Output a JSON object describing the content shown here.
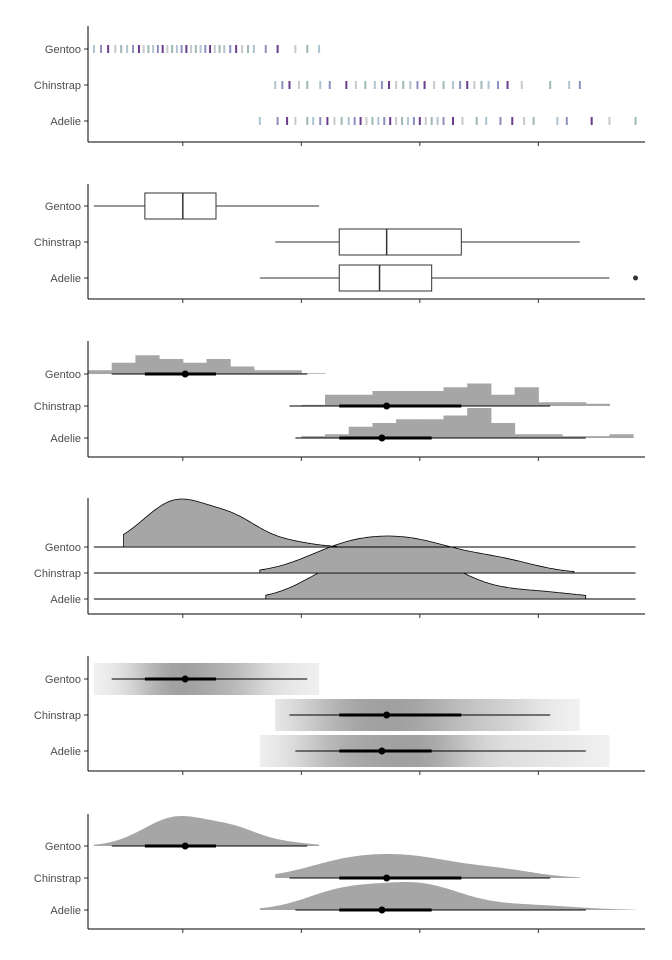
{
  "chart_data": {
    "type": "multi-panel distribution plot",
    "categories": [
      "Gentoo",
      "Chinstrap",
      "Adelie"
    ],
    "x_range": [
      -1.8,
      2.9
    ],
    "x_ticks": [
      -1,
      0,
      1,
      2
    ],
    "tick_labels_shown": false,
    "colors": {
      "fill": "#a6a6a6",
      "line": "#000000",
      "rug": [
        "#b0c4cf",
        "#8c8fbf",
        "#6a3d8a",
        "#c9c9c9",
        "#9fb8b4"
      ]
    },
    "stats": [
      {
        "name": "Gentoo",
        "min": -1.75,
        "q1": -1.32,
        "median": -1.0,
        "q3": -0.72,
        "max": 0.15,
        "mean": -0.98,
        "p05": -1.6,
        "p95": 0.05,
        "outliers": []
      },
      {
        "name": "Chinstrap",
        "min": -0.22,
        "q1": 0.32,
        "median": 0.72,
        "q3": 1.35,
        "max": 2.35,
        "mean": 0.72,
        "p05": -0.1,
        "p95": 2.1,
        "outliers": []
      },
      {
        "name": "Adelie",
        "min": -0.35,
        "q1": 0.32,
        "median": 0.66,
        "q3": 1.1,
        "max": 2.6,
        "mean": 0.68,
        "p05": -0.05,
        "p95": 2.4,
        "outliers": [
          2.82
        ]
      }
    ],
    "rug": {
      "Gentoo": [
        -1.75,
        -1.69,
        -1.63,
        -1.57,
        -1.52,
        -1.47,
        -1.42,
        -1.37,
        -1.33,
        -1.29,
        -1.25,
        -1.21,
        -1.17,
        -1.13,
        -1.09,
        -1.05,
        -1.01,
        -0.97,
        -0.93,
        -0.89,
        -0.85,
        -0.81,
        -0.77,
        -0.73,
        -0.69,
        -0.65,
        -0.6,
        -0.55,
        -0.5,
        -0.45,
        -0.4,
        -0.3,
        -0.2,
        -0.05,
        0.05,
        0.15
      ],
      "Chinstrap": [
        -0.22,
        -0.16,
        -0.1,
        -0.02,
        0.05,
        0.16,
        0.24,
        0.38,
        0.46,
        0.54,
        0.62,
        0.68,
        0.74,
        0.8,
        0.86,
        0.92,
        0.98,
        1.04,
        1.12,
        1.2,
        1.28,
        1.34,
        1.4,
        1.46,
        1.52,
        1.58,
        1.66,
        1.74,
        1.86,
        2.1,
        2.26,
        2.35
      ],
      "Adelie": [
        -0.35,
        -0.2,
        -0.12,
        -0.05,
        0.05,
        0.1,
        0.16,
        0.22,
        0.28,
        0.34,
        0.4,
        0.45,
        0.5,
        0.55,
        0.6,
        0.65,
        0.7,
        0.75,
        0.8,
        0.85,
        0.9,
        0.95,
        1.0,
        1.05,
        1.1,
        1.15,
        1.2,
        1.28,
        1.36,
        1.48,
        1.56,
        1.68,
        1.78,
        1.88,
        1.96,
        2.16,
        2.24,
        2.45,
        2.6,
        2.82
      ]
    },
    "histograms": {
      "bin_edges": [
        -1.8,
        -1.6,
        -1.4,
        -1.2,
        -1.0,
        -0.8,
        -0.6,
        -0.4,
        -0.2,
        0.0,
        0.2,
        0.4,
        0.6,
        0.8,
        1.0,
        1.2,
        1.4,
        1.6,
        1.8,
        2.0,
        2.2,
        2.4,
        2.6,
        2.8
      ],
      "Gentoo": [
        1,
        3,
        5,
        4,
        3,
        4,
        2,
        1,
        1,
        0.2,
        0,
        0,
        0,
        0,
        0,
        0,
        0,
        0,
        0,
        0,
        0,
        0,
        0
      ],
      "Chinstrap": [
        0,
        0,
        0,
        0,
        0,
        0,
        0,
        0,
        0,
        0.3,
        3,
        3,
        4,
        4,
        4,
        5,
        6,
        3,
        5,
        1,
        1,
        0.6,
        0
      ],
      "Adelie": [
        0,
        0,
        0,
        0,
        0,
        0,
        0,
        0,
        0,
        0.5,
        1,
        3,
        4,
        5,
        5,
        6,
        8,
        4,
        1,
        1,
        0.5,
        0.5,
        1
      ]
    },
    "panels": [
      "rug",
      "boxplot",
      "histogram+interval",
      "ridgeline density",
      "gradient interval",
      "half-eye density"
    ]
  }
}
